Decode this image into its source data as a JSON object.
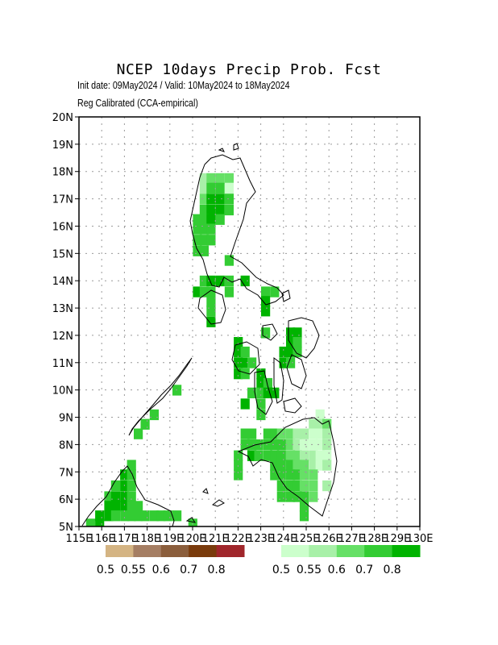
{
  "title": "NCEP 10days Precip Prob. Fcst",
  "subtitle_1": "Init date: 09May2024 / Valid: 10May2024 to 18May2024",
  "subtitle_2": "Reg Calibrated (CCA-empirical)",
  "map": {
    "lon_range": [
      115,
      130
    ],
    "lat_range": [
      5,
      20
    ],
    "grid": true,
    "lat_ticks": [
      "5N",
      "6N",
      "7N",
      "8N",
      "9N",
      "10N",
      "11N",
      "12N",
      "13N",
      "14N",
      "15N",
      "16N",
      "17N",
      "18N",
      "19N",
      "20N"
    ],
    "lon_ticks": [
      "115E",
      "116E",
      "117E",
      "118E",
      "119E",
      "120E",
      "121E",
      "122E",
      "123E",
      "124E",
      "125E",
      "126E",
      "127E",
      "128E",
      "129E",
      "130E"
    ]
  },
  "legend_dry": {
    "colors": [
      "#d4b483",
      "#a57e63",
      "#8b5e3c",
      "#7a3b0c",
      "#a0262b"
    ],
    "labels": [
      "0.5",
      "0.55",
      "0.6",
      "0.7",
      "0.8"
    ]
  },
  "legend_wet": {
    "colors": [
      "#ccffcc",
      "#a8f0a8",
      "#66e066",
      "#33cc33",
      "#00b300"
    ],
    "labels": [
      "0.5",
      "0.55",
      "0.6",
      "0.7",
      "0.8"
    ]
  },
  "wet_cells": [
    [
      120.5,
      17.75,
      1
    ],
    [
      120.8,
      17.75,
      2
    ],
    [
      121.2,
      17.75,
      2
    ],
    [
      121.6,
      17.75,
      2
    ],
    [
      120.5,
      17.4,
      1
    ],
    [
      120.8,
      17.4,
      3
    ],
    [
      121.2,
      17.4,
      3
    ],
    [
      121.6,
      17.4,
      0
    ],
    [
      120.5,
      17.0,
      2
    ],
    [
      120.8,
      17.0,
      4
    ],
    [
      121.2,
      17.0,
      4
    ],
    [
      121.6,
      17.0,
      3
    ],
    [
      120.5,
      16.6,
      3
    ],
    [
      120.8,
      16.6,
      4
    ],
    [
      121.2,
      16.6,
      4
    ],
    [
      121.6,
      16.6,
      3
    ],
    [
      120.2,
      16.25,
      3
    ],
    [
      120.5,
      16.25,
      3
    ],
    [
      120.8,
      16.25,
      4
    ],
    [
      121.2,
      16.25,
      3
    ],
    [
      120.2,
      15.9,
      3
    ],
    [
      120.5,
      15.9,
      3
    ],
    [
      120.8,
      15.9,
      3
    ],
    [
      120.2,
      15.5,
      3
    ],
    [
      120.5,
      15.5,
      3
    ],
    [
      120.8,
      15.5,
      3
    ],
    [
      120.2,
      15.1,
      3
    ],
    [
      120.5,
      15.1,
      3
    ],
    [
      121.6,
      14.75,
      3
    ],
    [
      120.5,
      14.0,
      3
    ],
    [
      120.8,
      14.0,
      4
    ],
    [
      121.2,
      14.0,
      4
    ],
    [
      121.6,
      14.0,
      3
    ],
    [
      122.3,
      14.0,
      4
    ],
    [
      120.2,
      13.6,
      4
    ],
    [
      120.5,
      13.6,
      3
    ],
    [
      120.8,
      13.6,
      3
    ],
    [
      121.6,
      13.6,
      3
    ],
    [
      123.2,
      13.6,
      3
    ],
    [
      123.6,
      13.6,
      3
    ],
    [
      120.8,
      13.25,
      3
    ],
    [
      123.2,
      13.25,
      4
    ],
    [
      120.8,
      12.9,
      3
    ],
    [
      123.2,
      12.9,
      4
    ],
    [
      120.8,
      12.5,
      4
    ],
    [
      123.2,
      12.1,
      3
    ],
    [
      124.3,
      12.1,
      4
    ],
    [
      124.6,
      12.1,
      4
    ],
    [
      122.0,
      11.75,
      4
    ],
    [
      124.3,
      11.75,
      4
    ],
    [
      124.6,
      11.75,
      3
    ],
    [
      122.0,
      11.4,
      4
    ],
    [
      122.3,
      11.4,
      3
    ],
    [
      124.0,
      11.4,
      4
    ],
    [
      124.3,
      11.4,
      4
    ],
    [
      124.6,
      11.4,
      3
    ],
    [
      122.0,
      11.0,
      4
    ],
    [
      122.3,
      11.0,
      4
    ],
    [
      122.6,
      11.0,
      3
    ],
    [
      124.0,
      11.0,
      4
    ],
    [
      124.3,
      11.0,
      3
    ],
    [
      122.0,
      10.6,
      4
    ],
    [
      122.3,
      10.6,
      3
    ],
    [
      123.0,
      10.6,
      4
    ],
    [
      123.0,
      10.25,
      4
    ],
    [
      123.3,
      10.25,
      3
    ],
    [
      122.6,
      9.9,
      3
    ],
    [
      123.0,
      9.9,
      3
    ],
    [
      123.3,
      9.9,
      4
    ],
    [
      123.6,
      9.9,
      4
    ],
    [
      122.3,
      9.5,
      4
    ],
    [
      123.0,
      9.5,
      3
    ],
    [
      123.0,
      9.1,
      3
    ],
    [
      125.6,
      9.1,
      0
    ],
    [
      125.3,
      8.75,
      1
    ],
    [
      125.6,
      8.75,
      1
    ],
    [
      125.9,
      8.75,
      2
    ],
    [
      122.3,
      8.4,
      3
    ],
    [
      122.6,
      8.4,
      3
    ],
    [
      123.3,
      8.4,
      3
    ],
    [
      123.6,
      8.4,
      3
    ],
    [
      123.9,
      8.4,
      2
    ],
    [
      124.3,
      8.4,
      2
    ],
    [
      124.6,
      8.4,
      1
    ],
    [
      124.9,
      8.4,
      1
    ],
    [
      125.3,
      8.4,
      0
    ],
    [
      125.6,
      8.4,
      0
    ],
    [
      125.9,
      8.4,
      1
    ],
    [
      122.3,
      8.0,
      3
    ],
    [
      122.6,
      8.0,
      3
    ],
    [
      122.9,
      8.0,
      3
    ],
    [
      123.3,
      8.0,
      3
    ],
    [
      123.6,
      8.0,
      3
    ],
    [
      123.9,
      8.0,
      3
    ],
    [
      124.3,
      8.0,
      2
    ],
    [
      124.6,
      8.0,
      1
    ],
    [
      124.9,
      8.0,
      0
    ],
    [
      125.3,
      8.0,
      0
    ],
    [
      125.6,
      8.0,
      0
    ],
    [
      125.9,
      8.0,
      1
    ],
    [
      122.0,
      7.6,
      3
    ],
    [
      122.6,
      7.6,
      4
    ],
    [
      122.9,
      7.6,
      3
    ],
    [
      123.3,
      7.6,
      3
    ],
    [
      123.6,
      7.6,
      3
    ],
    [
      123.9,
      7.6,
      3
    ],
    [
      124.3,
      7.6,
      2
    ],
    [
      124.6,
      7.6,
      2
    ],
    [
      124.9,
      7.6,
      1
    ],
    [
      125.3,
      7.6,
      1
    ],
    [
      125.6,
      7.6,
      0
    ],
    [
      125.9,
      7.6,
      0
    ],
    [
      122.0,
      7.25,
      3
    ],
    [
      123.6,
      7.25,
      3
    ],
    [
      123.9,
      7.25,
      3
    ],
    [
      124.3,
      7.25,
      3
    ],
    [
      124.6,
      7.25,
      2
    ],
    [
      124.9,
      7.25,
      2
    ],
    [
      125.3,
      7.25,
      1
    ],
    [
      125.6,
      7.25,
      0
    ],
    [
      125.9,
      7.25,
      1
    ],
    [
      122.0,
      6.9,
      3
    ],
    [
      123.6,
      6.9,
      3
    ],
    [
      123.9,
      6.9,
      3
    ],
    [
      124.3,
      6.9,
      3
    ],
    [
      124.6,
      6.9,
      3
    ],
    [
      124.9,
      6.9,
      2
    ],
    [
      125.3,
      6.9,
      2
    ],
    [
      123.9,
      6.5,
      3
    ],
    [
      124.3,
      6.5,
      3
    ],
    [
      124.6,
      6.5,
      3
    ],
    [
      124.9,
      6.5,
      2
    ],
    [
      125.3,
      6.5,
      2
    ],
    [
      125.9,
      6.5,
      1
    ],
    [
      123.9,
      6.1,
      3
    ],
    [
      124.3,
      6.1,
      3
    ],
    [
      124.6,
      6.1,
      3
    ],
    [
      124.9,
      6.1,
      3
    ],
    [
      125.3,
      6.1,
      2
    ],
    [
      124.9,
      5.75,
      3
    ],
    [
      124.9,
      5.4,
      3
    ],
    [
      117.3,
      7.25,
      3
    ],
    [
      117.0,
      6.9,
      4
    ],
    [
      117.3,
      6.9,
      3
    ],
    [
      116.6,
      6.5,
      3
    ],
    [
      117.0,
      6.5,
      4
    ],
    [
      117.3,
      6.5,
      3
    ],
    [
      116.3,
      6.1,
      3
    ],
    [
      116.6,
      6.1,
      4
    ],
    [
      117.0,
      6.1,
      4
    ],
    [
      117.3,
      6.1,
      3
    ],
    [
      116.3,
      5.75,
      4
    ],
    [
      116.6,
      5.75,
      4
    ],
    [
      117.0,
      5.75,
      4
    ],
    [
      117.3,
      5.75,
      3
    ],
    [
      117.6,
      5.75,
      3
    ],
    [
      115.9,
      5.4,
      4
    ],
    [
      116.3,
      5.4,
      4
    ],
    [
      116.6,
      5.4,
      3
    ],
    [
      117.0,
      5.4,
      3
    ],
    [
      117.3,
      5.4,
      3
    ],
    [
      117.6,
      5.4,
      3
    ],
    [
      117.9,
      5.4,
      3
    ],
    [
      118.3,
      5.4,
      3
    ],
    [
      118.6,
      5.4,
      3
    ],
    [
      118.9,
      5.4,
      3
    ],
    [
      119.3,
      5.4,
      3
    ],
    [
      115.5,
      5.1,
      3
    ],
    [
      115.9,
      5.1,
      4
    ],
    [
      117.6,
      8.4,
      3
    ],
    [
      117.9,
      8.75,
      3
    ],
    [
      118.3,
      9.1,
      3
    ],
    [
      119.3,
      10.0,
      3
    ],
    [
      120.0,
      5.1,
      3
    ]
  ]
}
